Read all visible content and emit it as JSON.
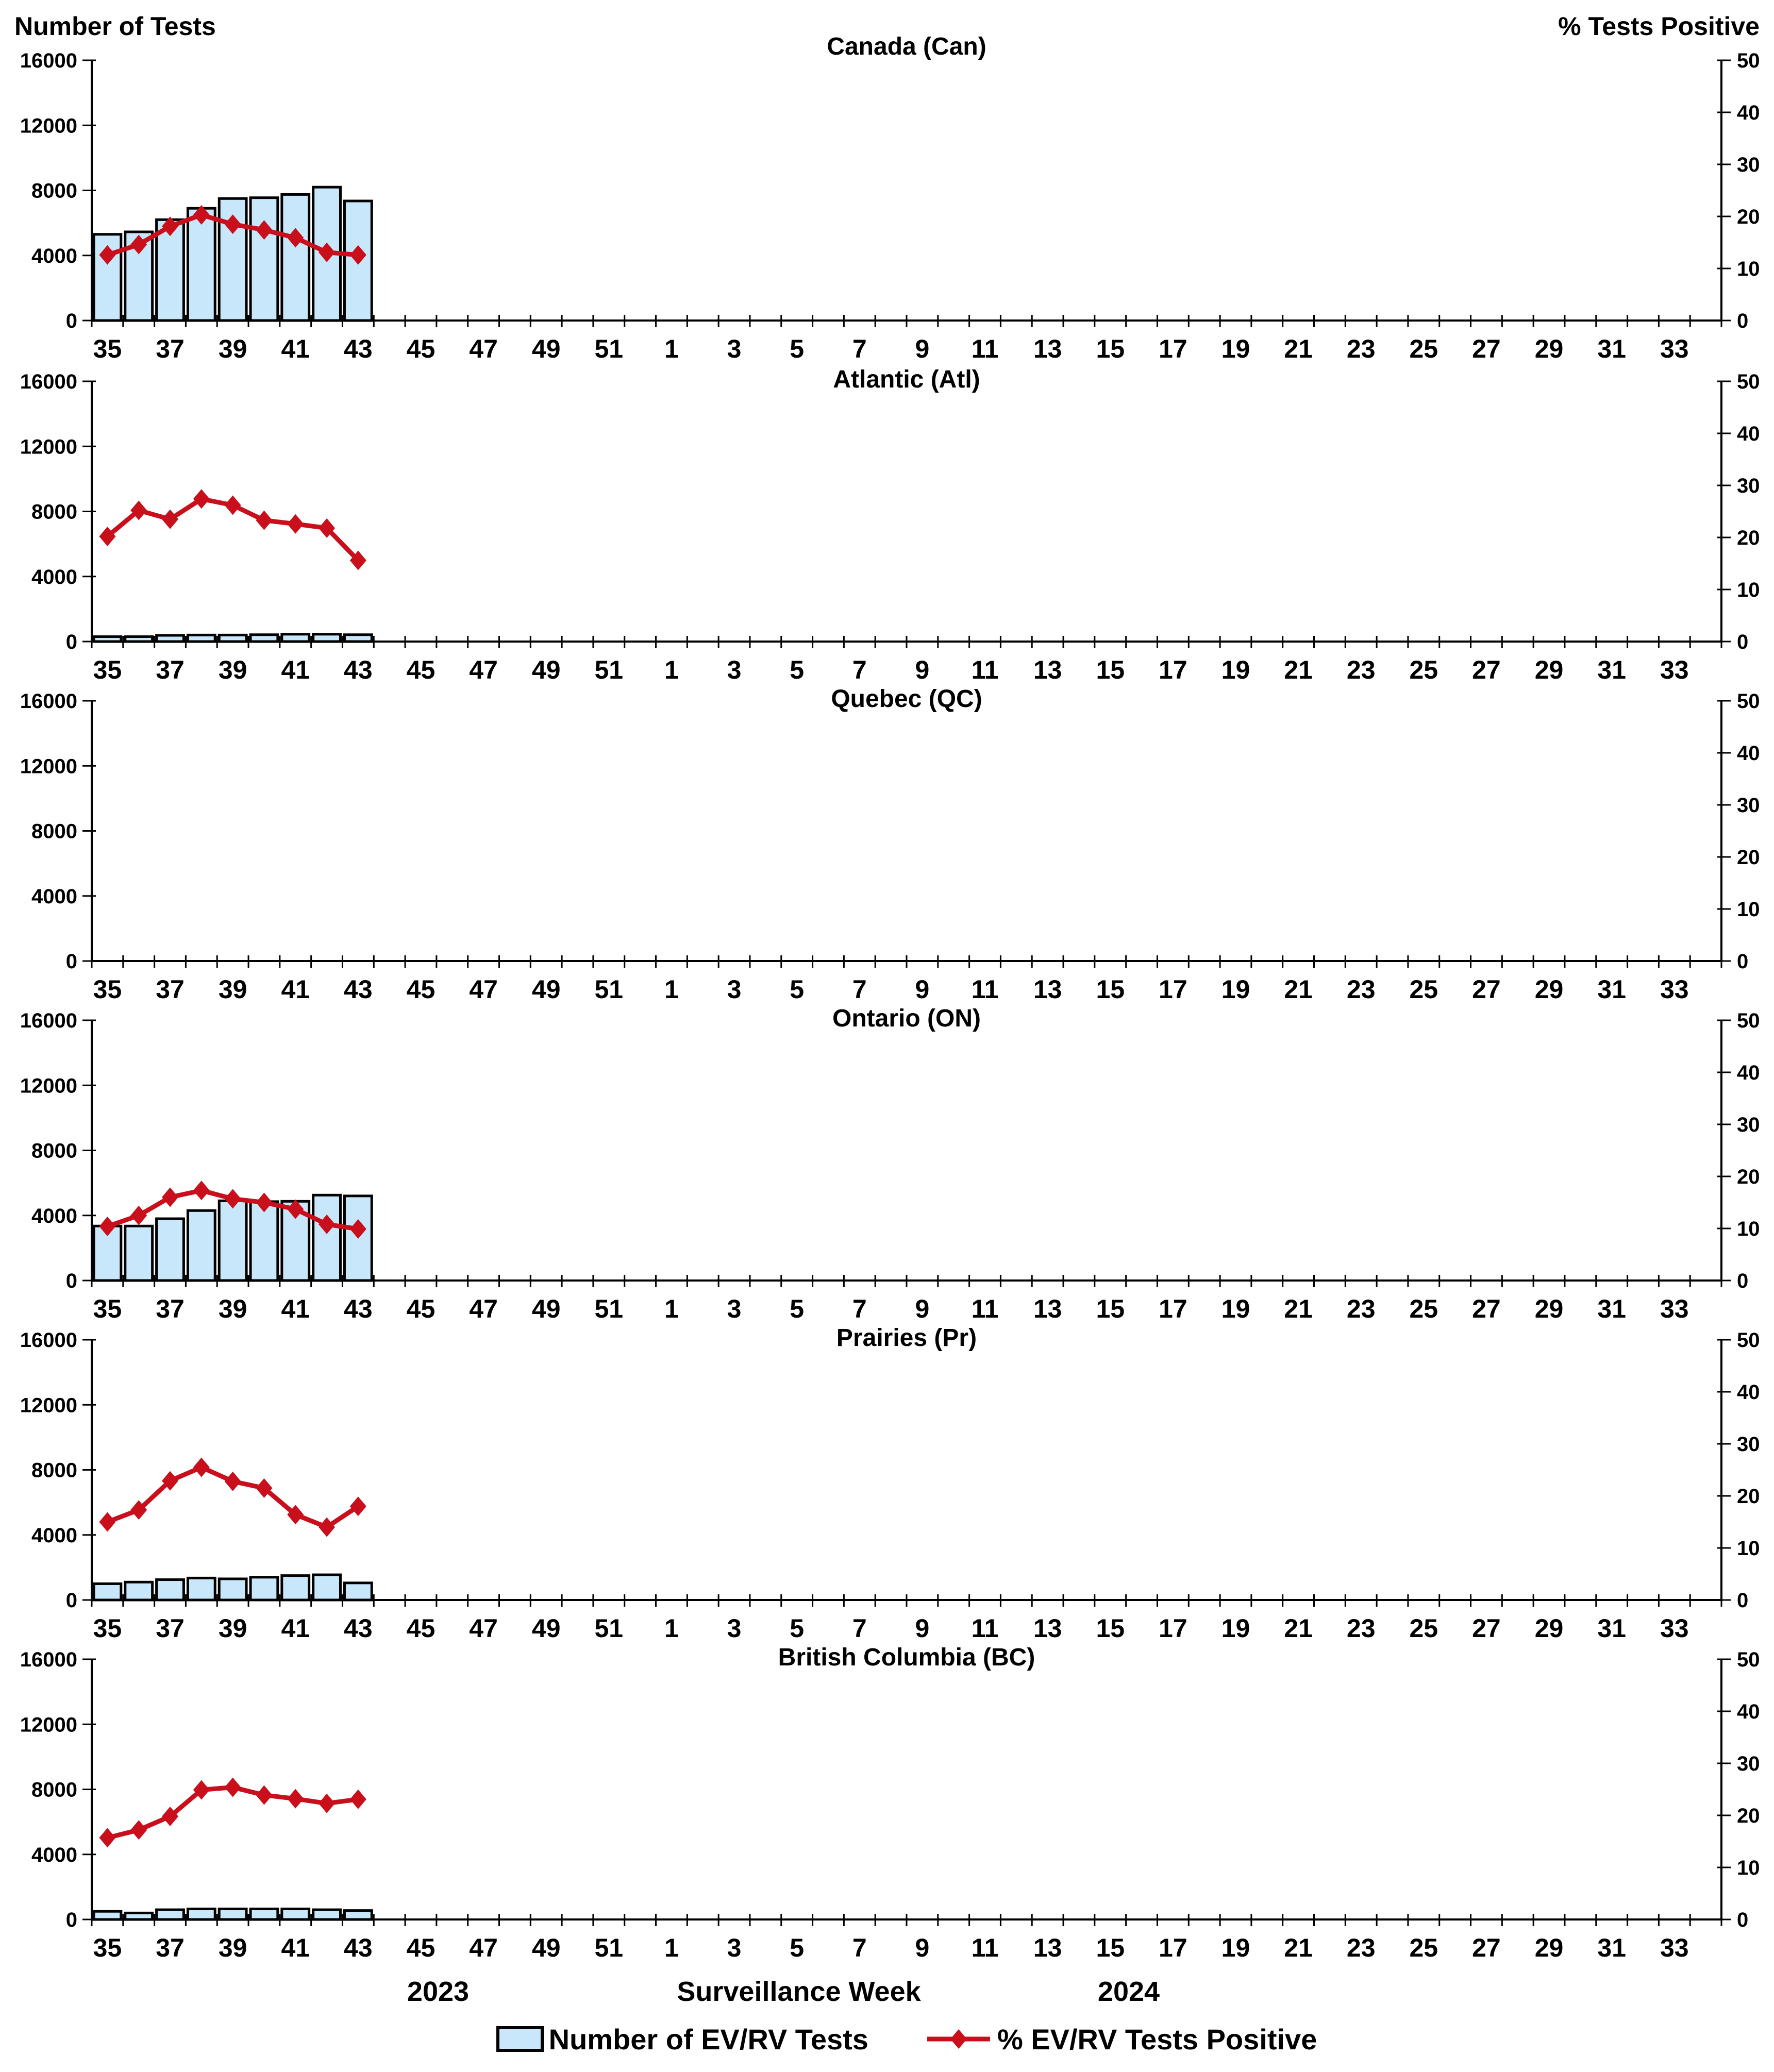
{
  "figure": {
    "left_axis_title": "Number of Tests",
    "right_axis_title": "% Tests Positive",
    "x_axis_title": "Surveillance Week",
    "year_left": "2023",
    "year_right": "2024",
    "legend_bar_label": "Number of EV/RV Tests",
    "legend_line_label": "% EV/RV Tests Positive",
    "colors": {
      "bar_fill": "#C9E7FA",
      "bar_stroke": "#000000",
      "line": "#C90F1C",
      "axis": "#000000",
      "background": "#FFFFFF",
      "text": "#000000"
    }
  },
  "left_axis": {
    "ticks": [
      0,
      4000,
      8000,
      12000,
      16000
    ],
    "max": 16000
  },
  "right_axis": {
    "ticks": [
      0,
      10,
      20,
      30,
      40,
      50
    ],
    "max": 50
  },
  "x_axis": {
    "total_weeks": 52,
    "week_sequence_note": "weeks 35-52 of 2023 followed by weeks 1-34 of 2024",
    "tick_labels": [
      35,
      37,
      39,
      41,
      43,
      45,
      47,
      49,
      51,
      1,
      3,
      5,
      7,
      9,
      11,
      13,
      15,
      17,
      19,
      21,
      23,
      25,
      27,
      29,
      31,
      33
    ],
    "data_weeks": [
      35,
      36,
      37,
      38,
      39,
      40,
      41,
      42,
      43
    ]
  },
  "chart_data": [
    {
      "type": "bar",
      "title": "Canada (Can)",
      "x": [
        35,
        36,
        37,
        38,
        39,
        40,
        41,
        42,
        43
      ],
      "xlabel": "Surveillance Week",
      "ylabel_left": "Number of Tests",
      "ylabel_right": "% Tests Positive",
      "ylim_left": [
        0,
        16000
      ],
      "ylim_right": [
        0,
        50
      ],
      "series": [
        {
          "name": "Number of EV/RV Tests",
          "axis": "left",
          "values": [
            5300,
            5450,
            6200,
            6900,
            7500,
            7550,
            7750,
            8200,
            7350
          ]
        },
        {
          "name": "% EV/RV Tests Positive",
          "axis": "right",
          "values": [
            12.6,
            14.6,
            18.1,
            20.3,
            18.5,
            17.4,
            15.9,
            13.1,
            12.6
          ]
        }
      ]
    },
    {
      "type": "bar",
      "title": "Atlantic (Atl)",
      "x": [
        35,
        36,
        37,
        38,
        39,
        40,
        41,
        42,
        43
      ],
      "ylim_left": [
        0,
        16000
      ],
      "ylim_right": [
        0,
        50
      ],
      "series": [
        {
          "name": "Number of EV/RV Tests",
          "axis": "left",
          "values": [
            300,
            300,
            380,
            400,
            400,
            420,
            450,
            450,
            420
          ]
        },
        {
          "name": "% EV/RV Tests Positive",
          "axis": "right",
          "values": [
            20.2,
            25.2,
            23.5,
            27.4,
            26.2,
            23.3,
            22.6,
            21.8,
            15.6
          ]
        }
      ]
    },
    {
      "type": "bar",
      "title": "Quebec (QC)",
      "x": [],
      "ylim_left": [
        0,
        16000
      ],
      "ylim_right": [
        0,
        50
      ],
      "series": [
        {
          "name": "Number of EV/RV Tests",
          "axis": "left",
          "values": []
        },
        {
          "name": "% EV/RV Tests Positive",
          "axis": "right",
          "values": []
        }
      ]
    },
    {
      "type": "bar",
      "title": "Ontario (ON)",
      "x": [
        35,
        36,
        37,
        38,
        39,
        40,
        41,
        42,
        43
      ],
      "ylim_left": [
        0,
        16000
      ],
      "ylim_right": [
        0,
        50
      ],
      "series": [
        {
          "name": "Number of EV/RV Tests",
          "axis": "left",
          "values": [
            3350,
            3350,
            3800,
            4300,
            4900,
            4850,
            4870,
            5250,
            5200
          ]
        },
        {
          "name": "% EV/RV Tests Positive",
          "axis": "right",
          "values": [
            10.4,
            12.5,
            16.0,
            17.3,
            15.7,
            15.0,
            13.7,
            10.8,
            9.9
          ]
        }
      ]
    },
    {
      "type": "bar",
      "title": "Prairies (Pr)",
      "x": [
        35,
        36,
        37,
        38,
        39,
        40,
        41,
        42,
        43
      ],
      "ylim_left": [
        0,
        16000
      ],
      "ylim_right": [
        0,
        50
      ],
      "series": [
        {
          "name": "Number of EV/RV Tests",
          "axis": "left",
          "values": [
            1000,
            1100,
            1250,
            1350,
            1300,
            1400,
            1500,
            1550,
            1050
          ]
        },
        {
          "name": "% EV/RV Tests Positive",
          "axis": "right",
          "values": [
            15.0,
            17.3,
            22.9,
            25.5,
            22.8,
            21.5,
            16.4,
            14.0,
            18.0
          ]
        }
      ]
    },
    {
      "type": "bar",
      "title": "British Columbia (BC)",
      "x": [
        35,
        36,
        37,
        38,
        39,
        40,
        41,
        42,
        43
      ],
      "ylim_left": [
        0,
        16000
      ],
      "ylim_right": [
        0,
        50
      ],
      "series": [
        {
          "name": "Number of EV/RV Tests",
          "axis": "left",
          "values": [
            500,
            400,
            600,
            650,
            650,
            650,
            650,
            600,
            550
          ]
        },
        {
          "name": "% EV/RV Tests Positive",
          "axis": "right",
          "values": [
            15.7,
            17.2,
            19.8,
            24.9,
            25.4,
            23.9,
            23.2,
            22.3,
            23.1
          ]
        }
      ]
    }
  ]
}
